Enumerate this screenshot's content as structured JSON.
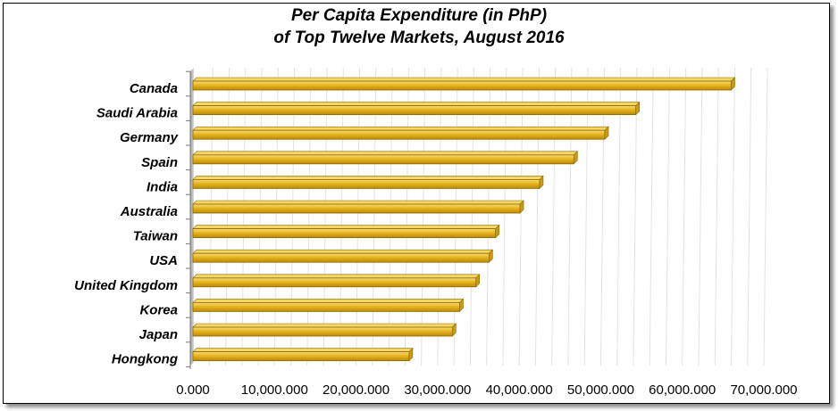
{
  "chart_data": {
    "type": "bar",
    "orientation": "horizontal",
    "title": [
      "Per Capita Expenditure (in PhP)",
      "of Top Twelve Markets, August 2016"
    ],
    "categories": [
      "Canada",
      "Saudi Arabia",
      "Germany",
      "Spain",
      "India",
      "Australia",
      "Taiwan",
      "USA",
      "United Kingdom",
      "Korea",
      "Japan",
      "Hongkong"
    ],
    "values": [
      66000,
      54300,
      50500,
      46700,
      42500,
      40100,
      37100,
      36300,
      34700,
      32700,
      31800,
      26500
    ],
    "xlim": [
      0,
      70000
    ],
    "x_ticks": [
      0,
      10000,
      20000,
      30000,
      40000,
      50000,
      60000,
      70000
    ],
    "x_tick_labels": [
      "0.000",
      "10,000.000",
      "20,000.000",
      "30,000.000",
      "40,000.000",
      "50,000.000",
      "60,000.000",
      "70,000.000"
    ],
    "bar_color": "#e8b41e",
    "bar_edge_color": "#8c6a00",
    "grid": true,
    "legend": false
  }
}
